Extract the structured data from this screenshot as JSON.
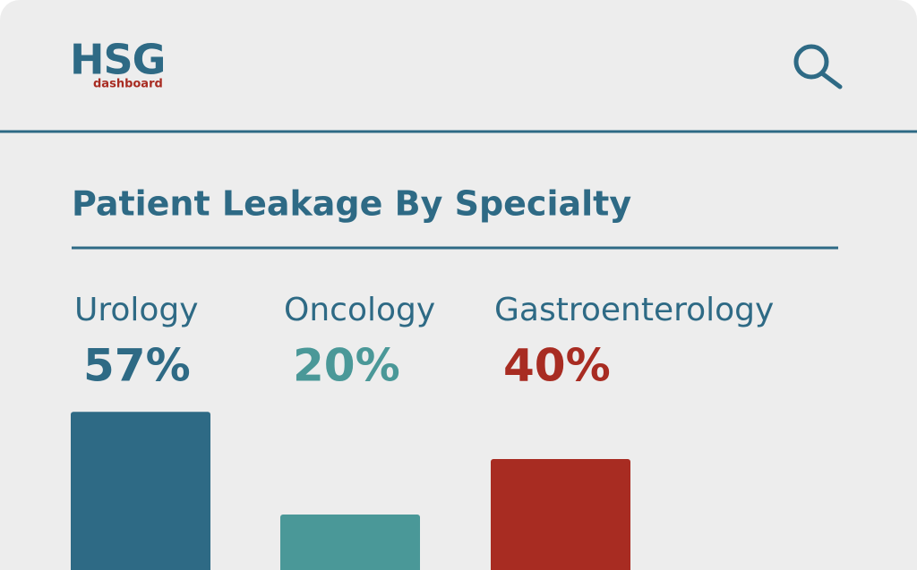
{
  "header": {
    "logo": "HSG",
    "logo_subtitle": "dashboard"
  },
  "chart_data": {
    "type": "bar",
    "title": "Patient Leakage By Specialty",
    "categories": [
      "Urology",
      "Oncology",
      "Gastroenterology"
    ],
    "values": [
      57,
      20,
      40
    ],
    "value_labels": [
      "57%",
      "20%",
      "40%"
    ],
    "colors": [
      "#2e6a85",
      "#4a9898",
      "#a82c22"
    ]
  }
}
